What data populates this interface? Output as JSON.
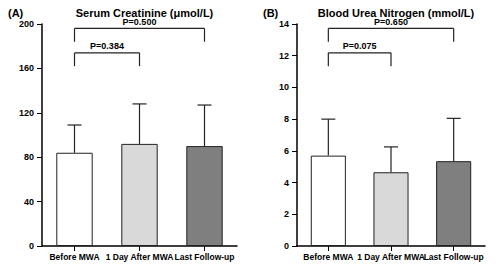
{
  "chart_data": [
    {
      "type": "bar",
      "panel": "(A)",
      "title": "Serum Creatinine (μmol/L)",
      "categories": [
        "Before MWA",
        "1 Day After MWA",
        "Last Follow-up"
      ],
      "values": [
        84,
        92,
        90
      ],
      "errors": [
        25,
        36,
        37
      ],
      "colors": [
        "#ffffff",
        "#d9d9d9",
        "#7f7f7f"
      ],
      "ylim": [
        0,
        200
      ],
      "yticks": [
        0,
        40,
        80,
        120,
        160,
        200
      ],
      "grid": false,
      "annotations": [
        {
          "text": "P=0.384",
          "between": [
            "Before MWA",
            "1 Day After MWA"
          ]
        },
        {
          "text": "P=0.500",
          "between": [
            "Before MWA",
            "Last Follow-up"
          ]
        }
      ]
    },
    {
      "type": "bar",
      "panel": "(B)",
      "title": "Blood Urea Nitrogen (mmol/L)",
      "categories": [
        "Before MWA",
        "1 Day After MWA",
        "Last Follow-up"
      ],
      "values": [
        5.7,
        4.65,
        5.35
      ],
      "errors": [
        2.3,
        1.6,
        2.7
      ],
      "colors": [
        "#ffffff",
        "#d9d9d9",
        "#7f7f7f"
      ],
      "ylim": [
        0,
        14
      ],
      "yticks": [
        0,
        2,
        4,
        6,
        8,
        10,
        12,
        14
      ],
      "grid": false,
      "annotations": [
        {
          "text": "P=0.075",
          "between": [
            "Before MWA",
            "1 Day After MWA"
          ]
        },
        {
          "text": "P=0.650",
          "between": [
            "Before MWA",
            "Last Follow-up"
          ]
        }
      ]
    }
  ]
}
